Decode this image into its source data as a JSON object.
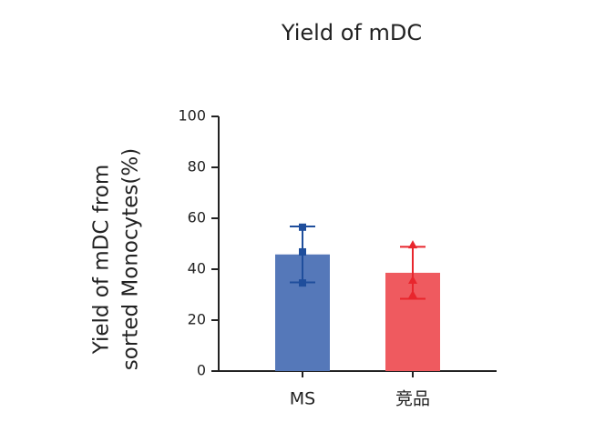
{
  "chart_data": {
    "type": "bar",
    "title": "Yield of mDC",
    "y_label": [
      "Yield of mDC from",
      "sorted Monocytes(%)"
    ],
    "categories": [
      "MS",
      "竞品"
    ],
    "values": [
      45.8,
      38.6
    ],
    "errors": [
      11,
      10.2
    ],
    "points": [
      [
        56.5,
        46.8,
        34.6
      ],
      [
        49.6,
        35.7,
        30
      ]
    ],
    "colors": [
      "#5578b9",
      "#ef5a5f"
    ],
    "error_colors": [
      "#1f4e9c",
      "#e8262d"
    ],
    "markers": [
      "square",
      "triangle"
    ],
    "ylim": [
      0,
      100
    ],
    "yticks": [
      0,
      20,
      40,
      60,
      80,
      100
    ]
  }
}
